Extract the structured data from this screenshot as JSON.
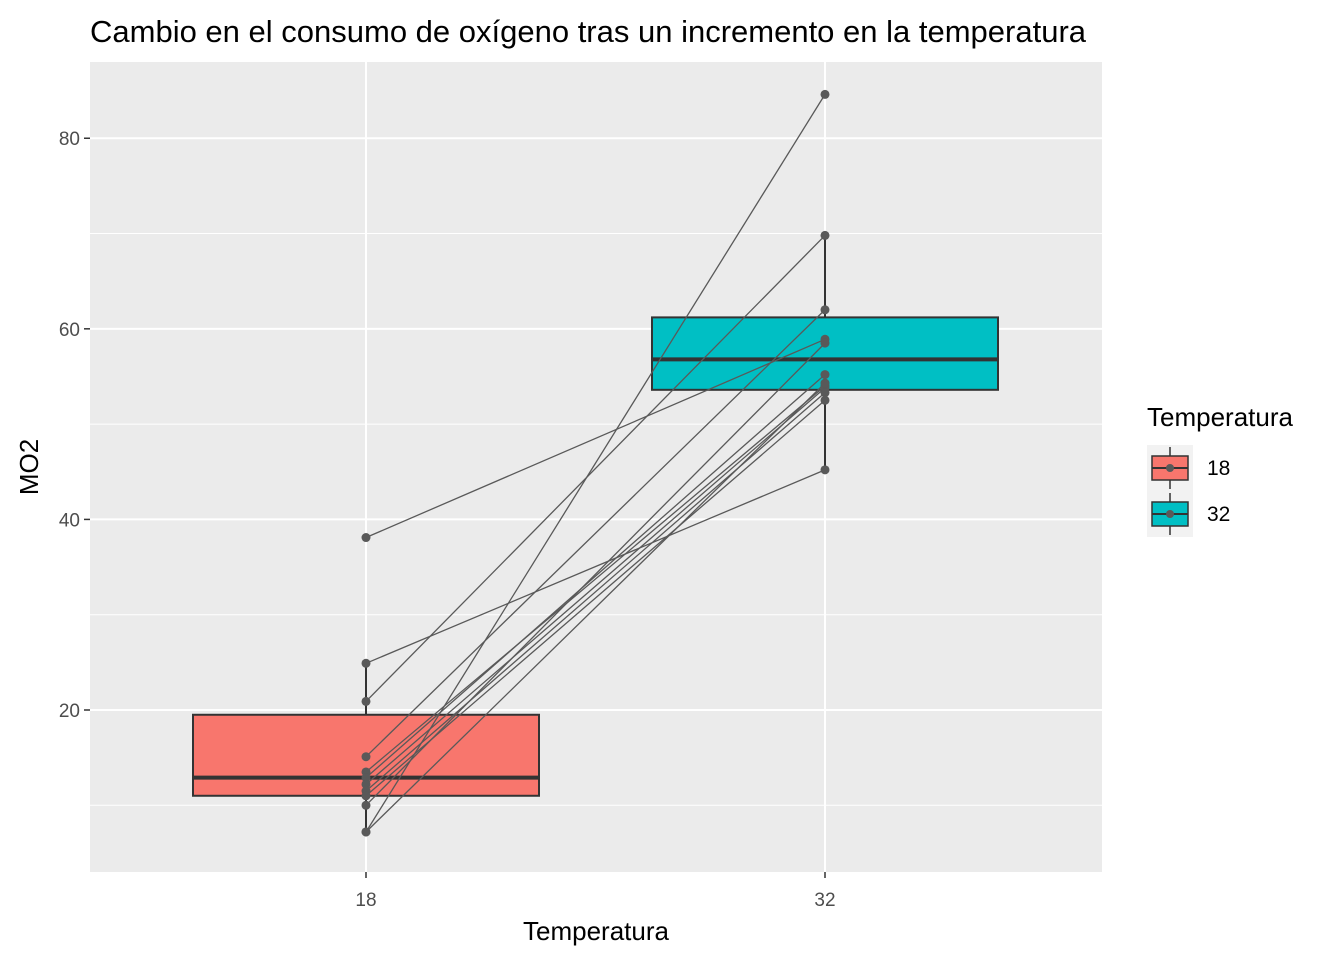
{
  "chart_data": {
    "type": "boxplot",
    "title": "Cambio en el consumo de oxígeno tras un incremento en la temperatura",
    "xlabel": "Temperatura",
    "ylabel": "MO2",
    "categories": [
      "18",
      "32"
    ],
    "ylim": [
      3,
      88
    ],
    "yticks": [
      20,
      40,
      60,
      80
    ],
    "grid": true,
    "legend": {
      "title": "Temperatura",
      "position": "right",
      "entries": [
        {
          "label": "18",
          "color": "#F8766D"
        },
        {
          "label": "32",
          "color": "#00BFC4"
        }
      ]
    },
    "boxes": [
      {
        "category": "18",
        "color": "#F8766D",
        "lower_whisker": 7.2,
        "q1": 11.0,
        "median": 12.9,
        "q3": 19.5,
        "upper_whisker": 24.9
      },
      {
        "category": "32",
        "color": "#00BFC4",
        "lower_whisker": 45.2,
        "q1": 53.6,
        "median": 56.8,
        "q3": 61.2,
        "upper_whisker": 69.8
      }
    ],
    "paired_points": [
      {
        "t18": 38.1,
        "t32": 58.9
      },
      {
        "t18": 24.9,
        "t32": 45.2
      },
      {
        "t18": 20.9,
        "t32": 69.8
      },
      {
        "t18": 15.1,
        "t32": 62.0
      },
      {
        "t18": 13.5,
        "t32": 54.0
      },
      {
        "t18": 12.9,
        "t32": 55.2
      },
      {
        "t18": 12.2,
        "t32": 53.8
      },
      {
        "t18": 11.5,
        "t32": 53.3
      },
      {
        "t18": 11.0,
        "t32": 52.5
      },
      {
        "t18": 10.0,
        "t32": 58.5
      },
      {
        "t18": 7.2,
        "t32": 84.6
      },
      {
        "t18": 7.2,
        "t32": 54.3
      }
    ]
  }
}
